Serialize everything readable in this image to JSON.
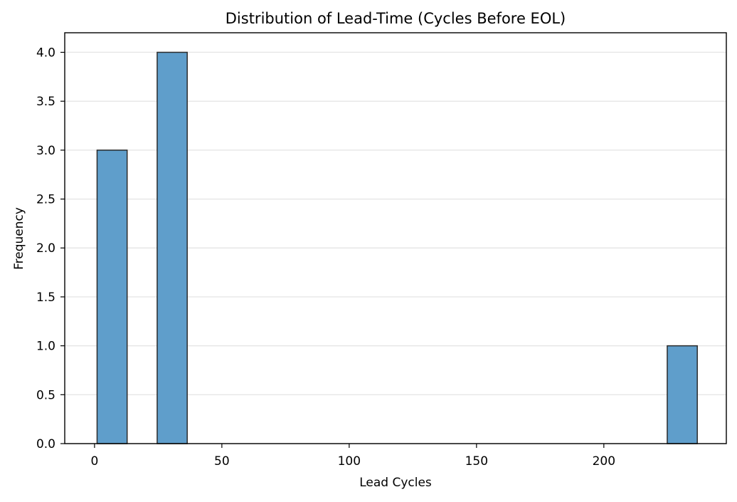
{
  "chart_data": {
    "type": "bar",
    "title": "Distribution of Lead-Time (Cycles Before EOL)",
    "xlabel": "Lead Cycles",
    "ylabel": "Frequency",
    "xlim": [
      -11.7,
      248.1
    ],
    "ylim": [
      0,
      4.2
    ],
    "xticks": [
      0,
      50,
      100,
      150,
      200
    ],
    "xtick_labels": [
      "0",
      "50",
      "100",
      "150",
      "200"
    ],
    "yticks": [
      0,
      0.5,
      1,
      1.5,
      2,
      2.5,
      3,
      3.5,
      4
    ],
    "ytick_labels": [
      "0.0",
      "0.5",
      "1.0",
      "1.5",
      "2.0",
      "2.5",
      "3.0",
      "3.5",
      "4.0"
    ],
    "grid": "y-major",
    "bars": [
      {
        "x0": 1.0,
        "x1": 12.8,
        "value": 3
      },
      {
        "x0": 24.6,
        "x1": 36.4,
        "value": 4
      },
      {
        "x0": 224.9,
        "x1": 236.7,
        "value": 1
      }
    ],
    "colors": {
      "bar_fill": "#5f9ecb",
      "bar_edge": "#2b2b2b",
      "grid": "#e6e6e6",
      "axis": "#000000"
    }
  }
}
